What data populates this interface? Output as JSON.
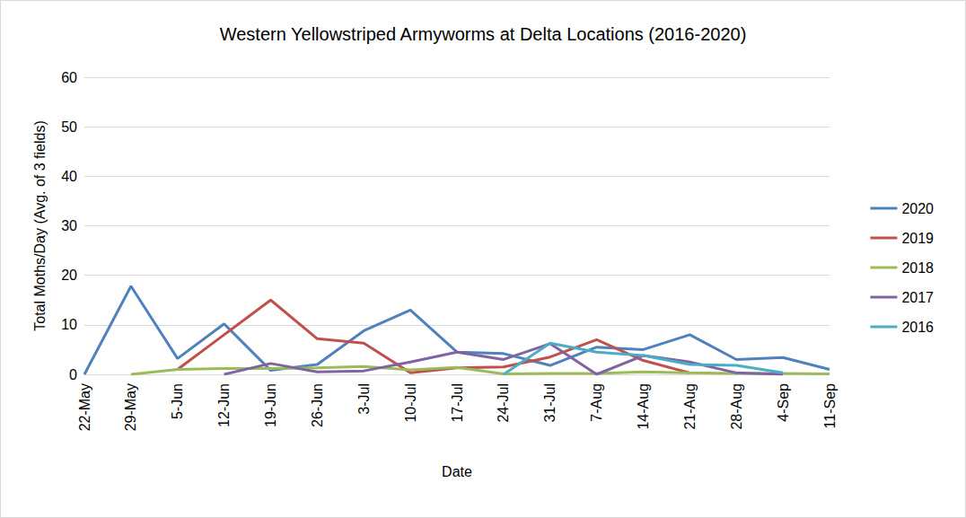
{
  "chart_data": {
    "type": "line",
    "title": "Western Yellowstriped Armyworms at Delta Locations (2016-2020)",
    "x_label": "Date",
    "y_label": "Total Moths/Day (Avg. of 3 fields)",
    "categories": [
      "22-May",
      "29-May",
      "5-Jun",
      "12-Jun",
      "19-Jun",
      "26-Jun",
      "3-Jul",
      "10-Jul",
      "17-Jul",
      "24-Jul",
      "31-Jul",
      "7-Aug",
      "14-Aug",
      "21-Aug",
      "28-Aug",
      "4-Sep",
      "11-Sep"
    ],
    "series": [
      {
        "name": "2020",
        "color": "#4f81bd",
        "values": [
          0,
          17.8,
          3.2,
          10.2,
          0.8,
          2,
          8.8,
          13,
          4.5,
          4.2,
          1.8,
          5.5,
          5,
          8,
          3,
          3.4,
          1
        ]
      },
      {
        "name": "2019",
        "color": "#c0504d",
        "values": [
          null,
          null,
          1,
          8,
          15,
          7.2,
          6.3,
          0.3,
          1.3,
          1.5,
          3.5,
          7,
          2.8,
          0.3,
          null,
          null,
          null
        ]
      },
      {
        "name": "2018",
        "color": "#9bbb59",
        "values": [
          null,
          0,
          1,
          1.2,
          1.2,
          1.3,
          1.6,
          0.9,
          1.4,
          0.1,
          0.2,
          0.2,
          0.5,
          0.3,
          0.2,
          0.2,
          0.1
        ]
      },
      {
        "name": "2017",
        "color": "#8064a2",
        "values": [
          null,
          null,
          null,
          0,
          2.2,
          0.5,
          0.7,
          2.5,
          4.5,
          3,
          6.2,
          0,
          3.8,
          2.5,
          0.3,
          0,
          null
        ]
      },
      {
        "name": "2016",
        "color": "#4bacc6",
        "values": [
          null,
          null,
          null,
          null,
          null,
          null,
          null,
          null,
          null,
          0,
          6.3,
          4.5,
          3.8,
          2,
          1.8,
          0.3,
          null
        ]
      }
    ],
    "ylim": [
      0,
      60
    ],
    "yticks": [
      0,
      10,
      20,
      30,
      40,
      50,
      60
    ],
    "grid": true,
    "legend": "right"
  }
}
